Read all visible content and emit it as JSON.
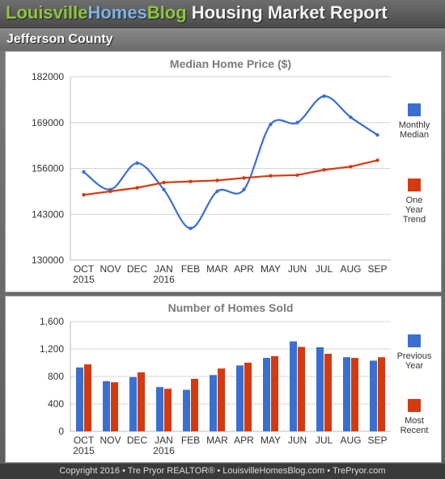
{
  "header": {
    "brand_part1": "Louisville",
    "brand_part2": "Homes",
    "brand_part3": "Blog",
    "report_title": "Housing Market Report",
    "region": "Jefferson County"
  },
  "footer": {
    "text": "Copyright 2016 • Tre Pryor REALTOR® • LouisvilleHomesBlog.com • TrePryor.com"
  },
  "colors": {
    "blue": "#3a6fd0",
    "red": "#d43a10"
  },
  "chart_data": [
    {
      "type": "line",
      "title": "Median Home Price ($)",
      "xlabel": "",
      "ylabel": "",
      "categories": [
        "OCT",
        "NOV",
        "DEC",
        "JAN",
        "FEB",
        "MAR",
        "APR",
        "MAY",
        "JUN",
        "JUL",
        "AUG",
        "SEP"
      ],
      "category_sublabels": [
        "2015",
        "",
        "",
        "2016",
        "",
        "",
        "",
        "",
        "",
        "",
        "",
        ""
      ],
      "ylim": [
        130000,
        182000
      ],
      "yticks": [
        130000,
        143000,
        156000,
        169000,
        182000
      ],
      "ytick_labels": [
        "130000",
        "143000",
        "156000",
        "169000",
        "182000"
      ],
      "grid": true,
      "legend_position": "right",
      "series": [
        {
          "name": "Monthly Median",
          "color": "#3a6fd0",
          "smooth": true,
          "values": [
            155000,
            150000,
            157500,
            150000,
            139000,
            149500,
            150000,
            168500,
            169000,
            176500,
            170500,
            165500
          ]
        },
        {
          "name": "One Year Trend",
          "color": "#d43a10",
          "smooth": false,
          "values": [
            148500,
            149500,
            150500,
            152000,
            152300,
            152600,
            153300,
            153900,
            154100,
            155600,
            156500,
            158300
          ]
        }
      ]
    },
    {
      "type": "bar",
      "title": "Number of Homes Sold",
      "xlabel": "",
      "ylabel": "",
      "categories": [
        "OCT",
        "NOV",
        "DEC",
        "JAN",
        "FEB",
        "MAR",
        "APR",
        "MAY",
        "JUN",
        "JUL",
        "AUG",
        "SEP"
      ],
      "category_sublabels": [
        "2015",
        "",
        "",
        "2016",
        "",
        "",
        "",
        "",
        "",
        "",
        "",
        ""
      ],
      "ylim": [
        0,
        1600
      ],
      "yticks": [
        0,
        400,
        800,
        1200,
        1600
      ],
      "ytick_labels": [
        "0",
        "400",
        "800",
        "1,200",
        "1,600"
      ],
      "grid": true,
      "legend_position": "right",
      "series": [
        {
          "name": "Previous Year",
          "color": "#3a6fd0",
          "values": [
            930,
            730,
            790,
            645,
            605,
            820,
            960,
            1070,
            1310,
            1225,
            1080,
            1030
          ]
        },
        {
          "name": "Most Recent",
          "color": "#d43a10",
          "values": [
            975,
            715,
            860,
            620,
            765,
            915,
            1000,
            1095,
            1230,
            1130,
            1070,
            1080
          ]
        }
      ]
    }
  ]
}
